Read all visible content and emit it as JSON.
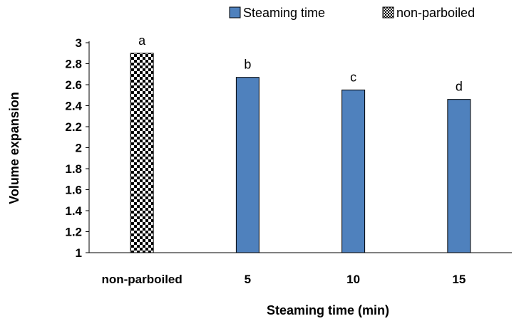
{
  "chart_data": {
    "type": "bar",
    "categories": [
      "non-parboiled",
      "5",
      "10",
      "15"
    ],
    "values": [
      2.9,
      2.67,
      2.55,
      2.46
    ],
    "data_labels": [
      "a",
      "b",
      "c",
      "d"
    ],
    "bar_patterns": [
      "checkerboard",
      "solid",
      "solid",
      "solid"
    ],
    "title": "",
    "xlabel": "Steaming time (min)",
    "ylabel": "Volume expansion",
    "ylim": [
      1,
      3
    ],
    "yticks": [
      "1",
      "1.2",
      "1.4",
      "1.6",
      "1.8",
      "2",
      "2.2",
      "2.4",
      "2.6",
      "2.8",
      "3"
    ],
    "legend": {
      "placement": "top-right",
      "entries": [
        {
          "label": "Steaming time",
          "pattern": "solid"
        },
        {
          "label": "non-parboiled",
          "pattern": "checkerboard"
        }
      ]
    },
    "colors": {
      "bar": "#4f81bd",
      "edge": "#000000",
      "axis": "#000000"
    },
    "grid": false
  }
}
